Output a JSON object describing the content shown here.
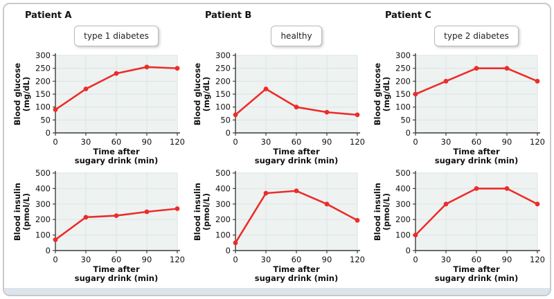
{
  "page": {
    "background": "#ffffff",
    "frame_border_color": "#c9c9c9",
    "footer_strip_color": "#dde4eb"
  },
  "columns": [
    {
      "title": "Patient A",
      "tag": "type 1 diabetes"
    },
    {
      "title": "Patient B",
      "tag": "healthy"
    },
    {
      "title": "Patient C",
      "tag": "type 2 diabetes"
    }
  ],
  "chart_style": {
    "line_color": "#ed2c2a",
    "marker_color": "#ed2c2a",
    "plot_bg": "#eef3f2",
    "grid_color": "#dbe3e2",
    "axis_color": "#3a3a3a",
    "text_color": "#111111"
  },
  "chart_data": [
    {
      "id": "patient-a-glucose",
      "type": "line",
      "patient": "Patient A",
      "condition": "type 1 diabetes",
      "x": [
        0,
        30,
        60,
        90,
        120
      ],
      "values": [
        90,
        170,
        230,
        255,
        250
      ],
      "xlabel": "Time after sugary drink (min)",
      "ylabel": "Blood glucose (mg/dL)",
      "xlabel_lines": [
        "Time after",
        "sugary drink (min)"
      ],
      "ylabel_lines": [
        "Blood glucose",
        "(mg/dL)"
      ],
      "xlim": [
        0,
        120
      ],
      "ylim": [
        0,
        300
      ],
      "xticks": [
        0,
        30,
        60,
        90,
        120
      ],
      "yticks": [
        0,
        50,
        100,
        150,
        200,
        250,
        300
      ],
      "grid": true,
      "legend": "none"
    },
    {
      "id": "patient-b-glucose",
      "type": "line",
      "patient": "Patient B",
      "condition": "healthy",
      "x": [
        0,
        30,
        60,
        90,
        120
      ],
      "values": [
        70,
        170,
        100,
        80,
        70
      ],
      "xlabel": "Time after sugary drink (min)",
      "ylabel": "Blood glucose (mg/dL)",
      "xlabel_lines": [
        "Time after",
        "sugary drink (min)"
      ],
      "ylabel_lines": [
        "Blood glucose",
        "(mg/dL)"
      ],
      "xlim": [
        0,
        120
      ],
      "ylim": [
        0,
        300
      ],
      "xticks": [
        0,
        30,
        60,
        90,
        120
      ],
      "yticks": [
        0,
        50,
        100,
        150,
        200,
        250,
        300
      ],
      "grid": true,
      "legend": "none"
    },
    {
      "id": "patient-c-glucose",
      "type": "line",
      "patient": "Patient C",
      "condition": "type 2 diabetes",
      "x": [
        0,
        30,
        60,
        90,
        120
      ],
      "values": [
        150,
        200,
        250,
        250,
        200
      ],
      "xlabel": "Time after sugary drink (min)",
      "ylabel": "Blood glucose (mg/dL)",
      "xlabel_lines": [
        "Time after",
        "sugary drink (min)"
      ],
      "ylabel_lines": [
        "Blood glucose",
        "(mg/dL)"
      ],
      "xlim": [
        0,
        120
      ],
      "ylim": [
        0,
        300
      ],
      "xticks": [
        0,
        30,
        60,
        90,
        120
      ],
      "yticks": [
        0,
        50,
        100,
        150,
        200,
        250,
        300
      ],
      "grid": true,
      "legend": "none"
    },
    {
      "id": "patient-a-insulin",
      "type": "line",
      "patient": "Patient A",
      "condition": "type 1 diabetes",
      "x": [
        0,
        30,
        60,
        90,
        120
      ],
      "values": [
        70,
        215,
        225,
        250,
        270
      ],
      "xlabel": "Time after sugary drink (min)",
      "ylabel": "Blood insulin (pmol/L)",
      "xlabel_lines": [
        "Time after",
        "sugary drink (min)"
      ],
      "ylabel_lines": [
        "Blood insulin",
        "(pmol/L)"
      ],
      "xlim": [
        0,
        120
      ],
      "ylim": [
        0,
        500
      ],
      "xticks": [
        0,
        30,
        60,
        90,
        120
      ],
      "yticks": [
        0,
        100,
        200,
        300,
        400,
        500
      ],
      "grid": true,
      "legend": "none"
    },
    {
      "id": "patient-b-insulin",
      "type": "line",
      "patient": "Patient B",
      "condition": "healthy",
      "x": [
        0,
        30,
        60,
        90,
        120
      ],
      "values": [
        50,
        370,
        385,
        300,
        195
      ],
      "xlabel": "Time after sugary drink (min)",
      "ylabel": "Blood insulin (pmol/L)",
      "xlabel_lines": [
        "Time after",
        "sugary drink (min)"
      ],
      "ylabel_lines": [
        "Blood insulin",
        "(pmol/L)"
      ],
      "xlim": [
        0,
        120
      ],
      "ylim": [
        0,
        500
      ],
      "xticks": [
        0,
        30,
        60,
        90,
        120
      ],
      "yticks": [
        0,
        100,
        200,
        300,
        400,
        500
      ],
      "grid": true,
      "legend": "none"
    },
    {
      "id": "patient-c-insulin",
      "type": "line",
      "patient": "Patient C",
      "condition": "type 2 diabetes",
      "x": [
        0,
        30,
        60,
        90,
        120
      ],
      "values": [
        100,
        300,
        400,
        400,
        300
      ],
      "xlabel": "Time after sugary drink (min)",
      "ylabel": "Blood insulin (pmol/L)",
      "xlabel_lines": [
        "Time after",
        "sugary drink (min)"
      ],
      "ylabel_lines": [
        "Blood insulin",
        "(pmol/L)"
      ],
      "xlim": [
        0,
        120
      ],
      "ylim": [
        0,
        500
      ],
      "xticks": [
        0,
        30,
        60,
        90,
        120
      ],
      "yticks": [
        0,
        100,
        200,
        300,
        400,
        500
      ],
      "grid": true,
      "legend": "none"
    }
  ]
}
